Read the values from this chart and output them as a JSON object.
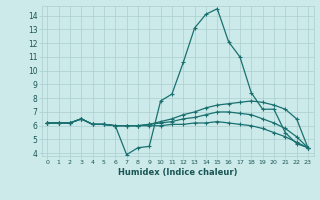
{
  "xlabel": "Humidex (Indice chaleur)",
  "bg_color": "#cceaea",
  "line_color": "#1a7070",
  "grid_color": "#aacece",
  "xlim": [
    -0.5,
    23.5
  ],
  "ylim": [
    3.8,
    14.7
  ],
  "yticks": [
    4,
    5,
    6,
    7,
    8,
    9,
    10,
    11,
    12,
    13,
    14
  ],
  "xticks": [
    0,
    1,
    2,
    3,
    4,
    5,
    6,
    7,
    8,
    9,
    10,
    11,
    12,
    13,
    14,
    15,
    16,
    17,
    18,
    19,
    20,
    21,
    22,
    23
  ],
  "series": [
    {
      "x": [
        0,
        1,
        2,
        3,
        4,
        5,
        6,
        7,
        8,
        9,
        10,
        11,
        12,
        13,
        14,
        15,
        16,
        17,
        18,
        19,
        20,
        21,
        22,
        23
      ],
      "y": [
        6.2,
        6.2,
        6.2,
        6.5,
        6.1,
        6.1,
        6.0,
        3.9,
        4.4,
        4.5,
        7.8,
        8.3,
        10.6,
        13.1,
        14.1,
        14.5,
        12.1,
        11.0,
        8.4,
        7.2,
        7.2,
        5.5,
        4.7,
        4.4
      ]
    },
    {
      "x": [
        0,
        1,
        2,
        3,
        4,
        5,
        6,
        7,
        8,
        9,
        10,
        11,
        12,
        13,
        14,
        15,
        16,
        17,
        18,
        19,
        20,
        21,
        22,
        23
      ],
      "y": [
        6.2,
        6.2,
        6.2,
        6.5,
        6.1,
        6.1,
        6.0,
        6.0,
        6.0,
        6.1,
        6.3,
        6.5,
        6.8,
        7.0,
        7.3,
        7.5,
        7.6,
        7.7,
        7.8,
        7.7,
        7.5,
        7.2,
        6.5,
        4.4
      ]
    },
    {
      "x": [
        0,
        1,
        2,
        3,
        4,
        5,
        6,
        7,
        8,
        9,
        10,
        11,
        12,
        13,
        14,
        15,
        16,
        17,
        18,
        19,
        20,
        21,
        22,
        23
      ],
      "y": [
        6.2,
        6.2,
        6.2,
        6.5,
        6.1,
        6.1,
        6.0,
        6.0,
        6.0,
        6.1,
        6.2,
        6.3,
        6.5,
        6.6,
        6.8,
        7.0,
        7.0,
        6.9,
        6.8,
        6.5,
        6.2,
        5.8,
        5.2,
        4.4
      ]
    },
    {
      "x": [
        0,
        1,
        2,
        3,
        4,
        5,
        6,
        7,
        8,
        9,
        10,
        11,
        12,
        13,
        14,
        15,
        16,
        17,
        18,
        19,
        20,
        21,
        22,
        23
      ],
      "y": [
        6.2,
        6.2,
        6.2,
        6.5,
        6.1,
        6.1,
        6.0,
        6.0,
        6.0,
        6.0,
        6.0,
        6.1,
        6.1,
        6.2,
        6.2,
        6.3,
        6.2,
        6.1,
        6.0,
        5.8,
        5.5,
        5.2,
        4.8,
        4.4
      ]
    }
  ]
}
